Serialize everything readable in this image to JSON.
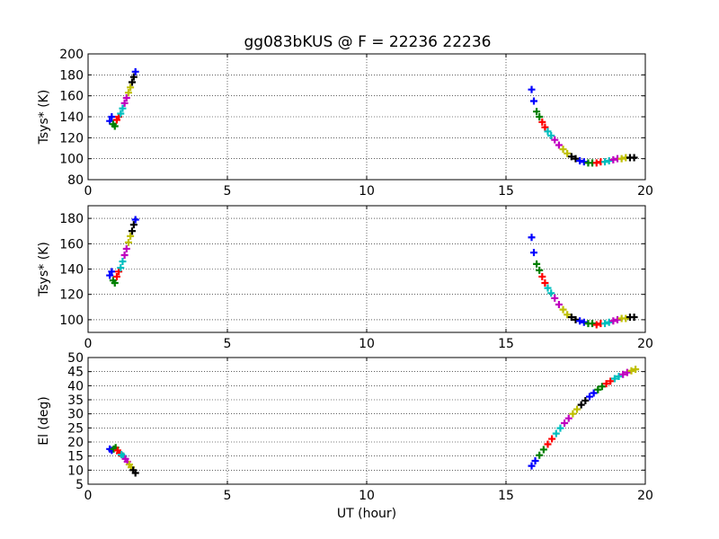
{
  "figure": {
    "title": "gg083bKUS @ F = 22236 22236"
  },
  "colors": {
    "cycle": [
      "#0000ff",
      "#008000",
      "#ff0000",
      "#00bfbf",
      "#bf00bf",
      "#bfbf00",
      "#000000"
    ]
  },
  "chart_data": [
    {
      "type": "scatter",
      "marker": "plus",
      "title": "gg083bKUS @ F = 22236 22236",
      "xlabel": "",
      "ylabel": "Tsys* (K)",
      "xlim": [
        0,
        20
      ],
      "ylim": [
        80,
        200
      ],
      "xticks": [
        0,
        5,
        10,
        15,
        20
      ],
      "yticks": [
        80,
        100,
        120,
        140,
        160,
        180,
        200
      ],
      "grid": true,
      "segments": [
        {
          "x": [
            0.78,
            0.85,
            0.9,
            0.96,
            1.03,
            1.1,
            1.17,
            1.24,
            1.31,
            1.38,
            1.45,
            1.52,
            1.58,
            1.64,
            1.7
          ],
          "y": [
            136,
            140,
            133,
            131,
            137,
            140,
            143,
            148,
            153,
            158,
            163,
            168,
            173,
            178,
            183
          ]
        },
        {
          "x": [
            15.92,
            16.0,
            16.1,
            16.2,
            16.3,
            16.4,
            16.5,
            16.62,
            16.75,
            16.9,
            17.05,
            17.2,
            17.35,
            17.5,
            17.65,
            17.8,
            17.95,
            18.1,
            18.25,
            18.4,
            18.55,
            18.7,
            18.85,
            19.0,
            19.15,
            19.3,
            19.45,
            19.6
          ],
          "y": [
            166,
            155,
            145,
            140,
            135,
            130,
            126,
            122,
            118,
            113,
            109,
            105,
            102,
            100,
            98,
            97,
            96,
            96,
            96,
            97,
            97,
            98,
            99,
            100,
            100,
            101,
            101,
            101
          ]
        }
      ]
    },
    {
      "type": "scatter",
      "marker": "plus",
      "title": "",
      "xlabel": "",
      "ylabel": "Tsys* (K)",
      "xlim": [
        0,
        20
      ],
      "ylim": [
        90,
        190
      ],
      "xticks": [
        0,
        5,
        10,
        15,
        20
      ],
      "yticks": [
        100,
        120,
        140,
        160,
        180
      ],
      "grid": true,
      "segments": [
        {
          "x": [
            0.78,
            0.85,
            0.9,
            0.96,
            1.03,
            1.1,
            1.17,
            1.24,
            1.31,
            1.38,
            1.45,
            1.52,
            1.58,
            1.64,
            1.7
          ],
          "y": [
            135,
            138,
            131,
            129,
            134,
            138,
            141,
            146,
            151,
            156,
            161,
            166,
            170,
            175,
            179
          ]
        },
        {
          "x": [
            15.92,
            16.0,
            16.1,
            16.2,
            16.3,
            16.4,
            16.5,
            16.62,
            16.75,
            16.9,
            17.05,
            17.2,
            17.35,
            17.5,
            17.65,
            17.8,
            17.95,
            18.1,
            18.25,
            18.4,
            18.55,
            18.7,
            18.85,
            19.0,
            19.15,
            19.3,
            19.45,
            19.6
          ],
          "y": [
            165,
            153,
            144,
            139,
            134,
            129,
            125,
            121,
            117,
            112,
            108,
            104,
            102,
            100,
            99,
            98,
            97,
            97,
            96,
            97,
            97,
            98,
            99,
            100,
            101,
            101,
            102,
            102
          ]
        }
      ]
    },
    {
      "type": "scatter",
      "marker": "plus",
      "title": "",
      "xlabel": "UT (hour)",
      "ylabel": "El (deg)",
      "xlim": [
        0,
        20
      ],
      "ylim": [
        5,
        50
      ],
      "xticks": [
        0,
        5,
        10,
        15,
        20
      ],
      "yticks": [
        5,
        10,
        15,
        20,
        25,
        30,
        35,
        40,
        45,
        50
      ],
      "grid": true,
      "segments": [
        {
          "x": [
            0.78,
            0.85,
            0.92,
            0.99,
            1.06,
            1.13,
            1.2,
            1.27,
            1.34,
            1.41,
            1.48,
            1.55,
            1.62,
            1.7
          ],
          "y": [
            17.5,
            17,
            17.5,
            18,
            17,
            16,
            15.5,
            15,
            14,
            13,
            12,
            11,
            10,
            9
          ]
        },
        {
          "x": [
            15.92,
            16.05,
            16.2,
            16.35,
            16.5,
            16.65,
            16.8,
            16.95,
            17.1,
            17.25,
            17.4,
            17.55,
            17.7,
            17.85,
            18.0,
            18.15,
            18.3,
            18.45,
            18.6,
            18.75,
            18.9,
            19.05,
            19.2,
            19.35,
            19.5,
            19.65
          ],
          "y": [
            11.5,
            13.3,
            15.3,
            17.3,
            19.2,
            21.1,
            23,
            24.9,
            26.7,
            28.4,
            30,
            31.6,
            33.2,
            34.7,
            36.1,
            37.4,
            38.6,
            39.7,
            40.7,
            41.6,
            42.5,
            43.3,
            44.0,
            44.7,
            45.3,
            45.8
          ]
        }
      ]
    }
  ]
}
